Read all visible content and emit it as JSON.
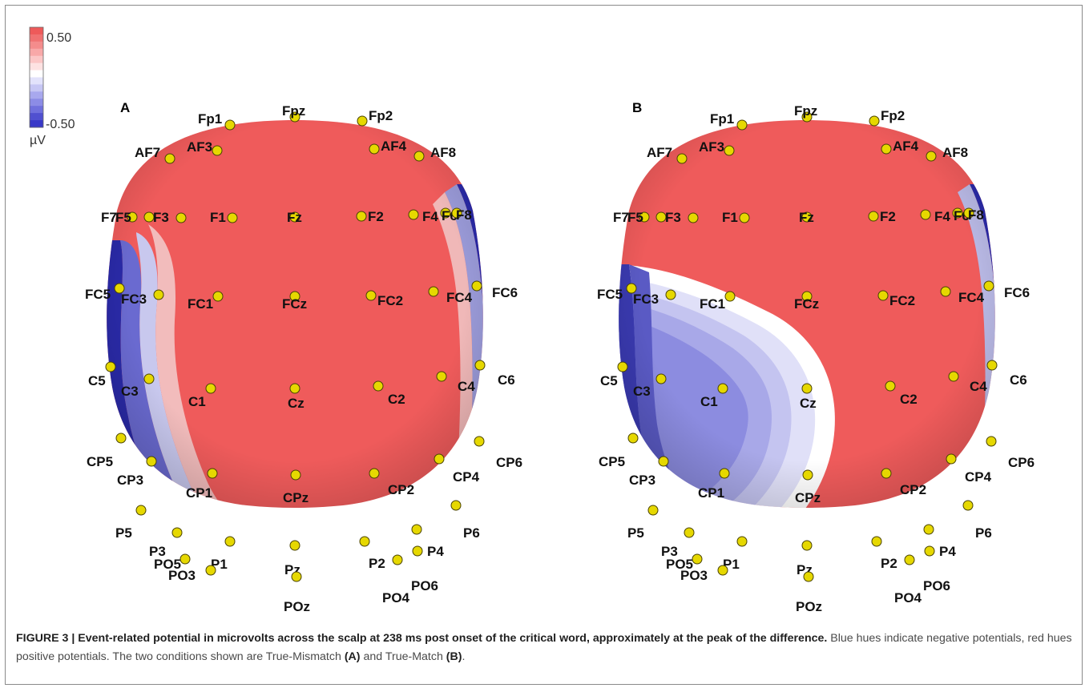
{
  "colorbar": {
    "max_label": "0.50",
    "min_label": "-0.50",
    "unit_label": "µV",
    "colors": [
      "#ee5a5a",
      "#f07272",
      "#f48c8c",
      "#f8a8a8",
      "#fbc6c6",
      "#fde2e2",
      "#ffffff",
      "#e2e2fb",
      "#c6c6f4",
      "#a8a8ee",
      "#8c8ce6",
      "#7070dd",
      "#5050d0",
      "#3838c8"
    ]
  },
  "panels": [
    {
      "letter": "A",
      "electrodes": [
        "Fp1",
        "Fpz",
        "Fp2",
        "AF7",
        "AF3",
        "AF4",
        "AF8",
        "F7",
        "F5",
        "F3",
        "F1",
        "Fz",
        "F2",
        "F4",
        "F6",
        "F8",
        "FC5",
        "FC3",
        "FC1",
        "FCz",
        "FC2",
        "FC4",
        "FC6",
        "C5",
        "C3",
        "C1",
        "Cz",
        "C2",
        "C4",
        "C6",
        "CP5",
        "CP3",
        "CP1",
        "CPz",
        "CP2",
        "CP4",
        "CP6",
        "P5",
        "P3",
        "P1",
        "Pz",
        "P2",
        "P4",
        "P6",
        "PO5",
        "PO3",
        "POz",
        "PO4",
        "PO6"
      ]
    },
    {
      "letter": "B",
      "electrodes": [
        "Fp1",
        "Fpz",
        "Fp2",
        "AF7",
        "AF3",
        "AF4",
        "AF8",
        "F7",
        "F5",
        "F3",
        "F1",
        "Fz",
        "F2",
        "F4",
        "F6",
        "F8",
        "FC5",
        "FC3",
        "FC1",
        "FCz",
        "FC2",
        "FC4",
        "FC6",
        "C5",
        "C3",
        "C1",
        "Cz",
        "C2",
        "C4",
        "C6",
        "CP5",
        "CP3",
        "CP1",
        "CPz",
        "CP2",
        "CP4",
        "CP6",
        "P5",
        "P3",
        "P1",
        "Pz",
        "P2",
        "P4",
        "P6",
        "PO5",
        "PO3",
        "POz",
        "PO4",
        "PO6"
      ]
    }
  ],
  "caption": {
    "title": "FIGURE 3 | Event-related potential in microvolts across the scalp at 238 ms post onset of the critical word, approximately at the peak of the difference.",
    "body_1": "Blue hues indicate negative potentials, red hues positive potentials. The two conditions shown are True-Mismatch",
    "cond_a": "(A)",
    "and": "and True-Match",
    "cond_b": "(B)",
    "end": "."
  },
  "colors": {
    "positive": "#ef5b5b",
    "negative": "#2a2aa8",
    "neutral": "#ffffff",
    "electrode": "#e6d800"
  }
}
